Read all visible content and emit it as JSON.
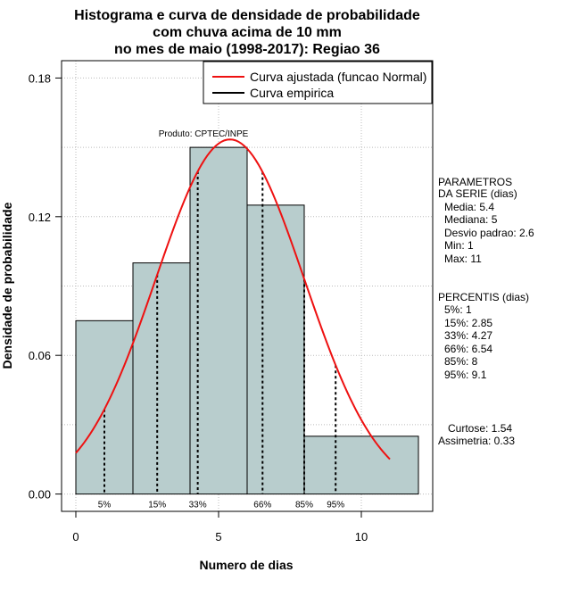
{
  "colors": {
    "bar_fill": "#b8cdcd",
    "curve": "#ee1111",
    "grid": "#bbbbbb"
  },
  "chart_data": {
    "type": "bar",
    "title": [
      "Histograma e curva de densidade de probabilidade",
      "com chuva acima de 10 mm",
      "no mes de maio (1998-2017): Regiao 36"
    ],
    "xlabel": "Numero de dias",
    "ylabel": "Densidade de probabilidade",
    "xlim": [
      -0.5,
      12.5
    ],
    "ylim": [
      -0.0075,
      0.1875
    ],
    "xticks": [
      0,
      5,
      10
    ],
    "yticks": [
      0.0,
      0.06,
      0.12,
      0.18
    ],
    "ytick_labels": [
      "0.00",
      "0.06",
      "0.12",
      "0.18"
    ],
    "grid": true,
    "bins": [
      {
        "x0": 0,
        "x1": 2,
        "density": 0.075
      },
      {
        "x0": 2,
        "x1": 4,
        "density": 0.1
      },
      {
        "x0": 4,
        "x1": 6,
        "density": 0.15
      },
      {
        "x0": 6,
        "x1": 8,
        "density": 0.125
      },
      {
        "x0": 8,
        "x1": 12,
        "density": 0.025
      }
    ],
    "normal_fit": {
      "mean": 5.4,
      "sd": 2.6,
      "x_range": [
        0,
        11
      ]
    },
    "percentile_lines": [
      {
        "x": 1,
        "label": "5%"
      },
      {
        "x": 2.85,
        "label": "15%"
      },
      {
        "x": 4.27,
        "label": "33%"
      },
      {
        "x": 6.54,
        "label": "66%"
      },
      {
        "x": 8,
        "label": "85%"
      },
      {
        "x": 9.1,
        "label": "95%"
      }
    ],
    "legend": {
      "position": "top-right",
      "entries": [
        {
          "label": "Curva ajustada (funcao Normal)",
          "color": "#ee1111"
        },
        {
          "label": "Curva empirica",
          "color": "#000000"
        }
      ]
    },
    "annotation": "Produto: CPTEC/INPE",
    "side_panel": {
      "params_header": [
        "PARAMETROS",
        "DA SERIE (dias)"
      ],
      "params": [
        "Media: 5.4",
        "Mediana: 5",
        "Desvio padrao: 2.6",
        "Min: 1",
        "Max: 11"
      ],
      "percentis_header": "PERCENTIS (dias)",
      "percentis": [
        "5%: 1",
        "15%: 2.85",
        "33%: 4.27",
        "66%: 6.54",
        "85%: 8",
        "95%: 9.1"
      ],
      "stats": [
        "Curtose: 1.54",
        "Assimetria: 0.33"
      ]
    }
  }
}
